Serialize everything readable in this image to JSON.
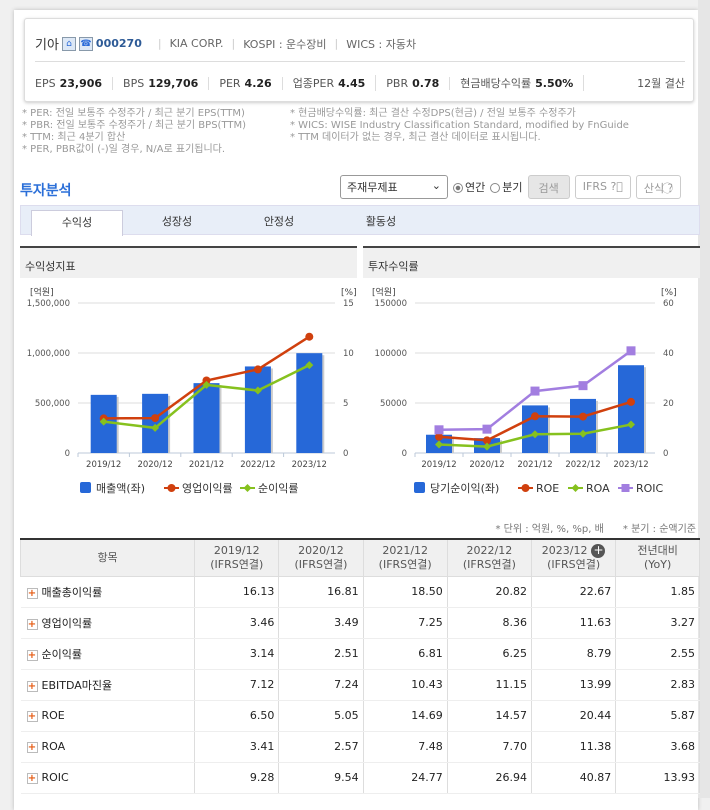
{
  "company": {
    "name": "기아",
    "code": "000270",
    "eng": "KIA CORP.",
    "market": "KOSPI : 운수장비",
    "wics": "WICS : 자동차",
    "home_icon": "home-icon",
    "ir_icon": "phone-icon"
  },
  "metrics": [
    {
      "label": "EPS",
      "value": "23,906"
    },
    {
      "label": "BPS",
      "value": "129,706"
    },
    {
      "label": "PER",
      "value": "4.26"
    },
    {
      "label": "업종PER",
      "value": "4.45"
    },
    {
      "label": "PBR",
      "value": "0.78"
    },
    {
      "label": "현금배당수익률",
      "value": "5.50%"
    }
  ],
  "fiscal": "12월 결산",
  "notes_left": [
    "* PER: 전일 보통주 수정주가 / 최근 분기 EPS(TTM)",
    "* PBR: 전일 보통주 수정주가 / 최근 분기 BPS(TTM)",
    "* TTM: 최근 4분기 합산",
    "* PER, PBR값이 (-)일 경우, N/A로 표기됩니다."
  ],
  "notes_right": [
    "* 현금배당수익률: 최근 결산 수정DPS(현금) / 전일 보통주 수정주가",
    "* WICS: WISE Industry Classification Standard, modified by FnGuide",
    "* TTM 데이터가 없는 경우, 최근 결산 데이터로 표시됩니다."
  ],
  "section": "투자분석",
  "controls": {
    "select": "주재무제표",
    "annual": "연간",
    "quarter": "분기",
    "search": "검색",
    "ifrs": "IFRS",
    "formula": "산식"
  },
  "tabs": [
    "수익성",
    "성장성",
    "안정성",
    "활동성"
  ],
  "panels": [
    "수익성지표",
    "투자수익률"
  ],
  "chart_data": [
    {
      "type": "bar+line",
      "categories": [
        "2019/12",
        "2020/12",
        "2021/12",
        "2022/12",
        "2023/12"
      ],
      "y_left_label": "[억원]",
      "y_right_label": "[%]",
      "ylim_left": [
        0,
        1500000
      ],
      "ylim_right": [
        0,
        15
      ],
      "left_ticks": [
        "0",
        "500,000",
        "1,000,000",
        "1,500,000"
      ],
      "right_ticks": [
        "0",
        "5",
        "10",
        "15"
      ],
      "grid": true,
      "legend": "bottom",
      "series": [
        {
          "name": "매출액(좌)",
          "type": "bar",
          "axis": "left",
          "color": "#2668d8",
          "values": [
            581460,
            591681,
            698624,
            865590,
            998084
          ]
        },
        {
          "name": "영업이익률",
          "type": "line",
          "axis": "right",
          "color": "#d0400e",
          "marker": "circle",
          "values": [
            3.46,
            3.49,
            7.25,
            8.36,
            11.63
          ]
        },
        {
          "name": "순이익률",
          "type": "line",
          "axis": "right",
          "color": "#86c11e",
          "marker": "diamond",
          "values": [
            3.14,
            2.51,
            6.81,
            6.25,
            8.79
          ]
        }
      ]
    },
    {
      "type": "bar+line",
      "categories": [
        "2019/12",
        "2020/12",
        "2021/12",
        "2022/12",
        "2023/12"
      ],
      "y_left_label": "[억원]",
      "y_right_label": "[%]",
      "ylim_left": [
        0,
        150000
      ],
      "ylim_right": [
        0,
        60
      ],
      "left_ticks": [
        "0",
        "50000",
        "100000",
        "150000"
      ],
      "right_ticks": [
        "0",
        "20",
        "40",
        "60"
      ],
      "grid": true,
      "legend": "bottom",
      "series": [
        {
          "name": "당기순이익(좌)",
          "type": "bar",
          "axis": "left",
          "color": "#2668d8",
          "values": [
            18267,
            14876,
            47603,
            54091,
            87778
          ]
        },
        {
          "name": "ROE",
          "type": "line",
          "axis": "right",
          "color": "#d0400e",
          "marker": "circle",
          "values": [
            6.5,
            5.05,
            14.69,
            14.57,
            20.44
          ]
        },
        {
          "name": "ROA",
          "type": "line",
          "axis": "right",
          "color": "#86c11e",
          "marker": "diamond",
          "values": [
            3.41,
            2.57,
            7.48,
            7.7,
            11.38
          ]
        },
        {
          "name": "ROIC",
          "type": "line",
          "axis": "right",
          "color": "#a27ee0",
          "marker": "square",
          "values": [
            9.28,
            9.54,
            24.77,
            26.94,
            40.87
          ]
        }
      ]
    }
  ],
  "unit_note": "* 단위 : 억원, %, %p, 배",
  "quarter_note": "* 분기 : 순액기준",
  "table": {
    "headers": [
      [
        "항목",
        ""
      ],
      [
        "2019/12",
        "(IFRS연결)"
      ],
      [
        "2020/12",
        "(IFRS연결)"
      ],
      [
        "2021/12",
        "(IFRS연결)"
      ],
      [
        "2022/12",
        "(IFRS연결)"
      ],
      [
        "2023/12",
        "(IFRS연결)"
      ],
      [
        "전년대비",
        "(YoY)"
      ]
    ],
    "rows": [
      [
        "매출총이익률",
        "16.13",
        "16.81",
        "18.50",
        "20.82",
        "22.67",
        "1.85"
      ],
      [
        "영업이익률",
        "3.46",
        "3.49",
        "7.25",
        "8.36",
        "11.63",
        "3.27"
      ],
      [
        "순이익률",
        "3.14",
        "2.51",
        "6.81",
        "6.25",
        "8.79",
        "2.55"
      ],
      [
        "EBITDA마진율",
        "7.12",
        "7.24",
        "10.43",
        "11.15",
        "13.99",
        "2.83"
      ],
      [
        "ROE",
        "6.50",
        "5.05",
        "14.69",
        "14.57",
        "20.44",
        "5.87"
      ],
      [
        "ROA",
        "3.41",
        "2.57",
        "7.48",
        "7.70",
        "11.38",
        "3.68"
      ],
      [
        "ROIC",
        "9.28",
        "9.54",
        "24.77",
        "26.94",
        "40.87",
        "13.93"
      ]
    ]
  }
}
